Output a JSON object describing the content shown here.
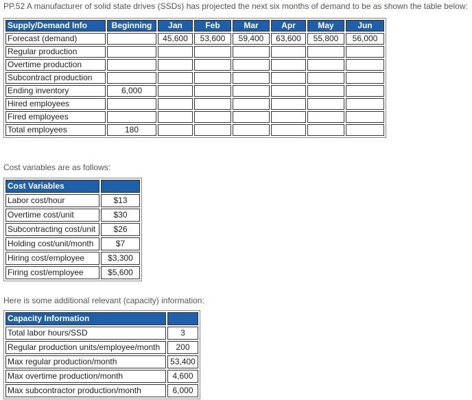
{
  "intro": "PP.52 A manufacturer of solid state drives (SSDs) has projected the next six months of demand to be as shown the table below:",
  "table1": {
    "header": [
      "Supply/Demand Info",
      "Beginning",
      "Jan",
      "Feb",
      "Mar",
      "Apr",
      "May",
      "Jun"
    ],
    "rows": [
      {
        "label": "Forecast (demand)",
        "months": [
          "45,600",
          "53,600",
          "59,400",
          "63,600",
          "55,800",
          "56,000"
        ]
      },
      {
        "label": "Regular production"
      },
      {
        "label": "Overtime production"
      },
      {
        "label": "Subcontract production"
      },
      {
        "label": "Ending inventory",
        "beginning": "6,000"
      },
      {
        "label": "Hired employees"
      },
      {
        "label": "Fired employees"
      },
      {
        "label": "Total employees",
        "beginning": "180"
      }
    ]
  },
  "cost_intro": "Cost variables are as follows:",
  "table2": {
    "header": "Cost Variables",
    "rows": [
      [
        "Labor cost/hour",
        "$13"
      ],
      [
        "Overtime cost/unit",
        "$30"
      ],
      [
        "Subcontracting cost/unit",
        "$26"
      ],
      [
        "Holding cost/unit/month",
        "$7"
      ],
      [
        "Hiring cost/employee",
        "$3,300"
      ],
      [
        "Firing cost/employee",
        "$5,600"
      ]
    ]
  },
  "capacity_intro": "Here is some additional relevant (capacity) information:",
  "table3": {
    "header": "Capacity Information",
    "rows": [
      [
        "Total labor hours/SSD",
        "3"
      ],
      [
        "Regular production units/employee/month",
        "200"
      ],
      [
        "Max regular production/month",
        "53,400"
      ],
      [
        "Max overtime production/month",
        "4,600"
      ],
      [
        "Max subcontractor production/month",
        "6,000"
      ]
    ]
  }
}
